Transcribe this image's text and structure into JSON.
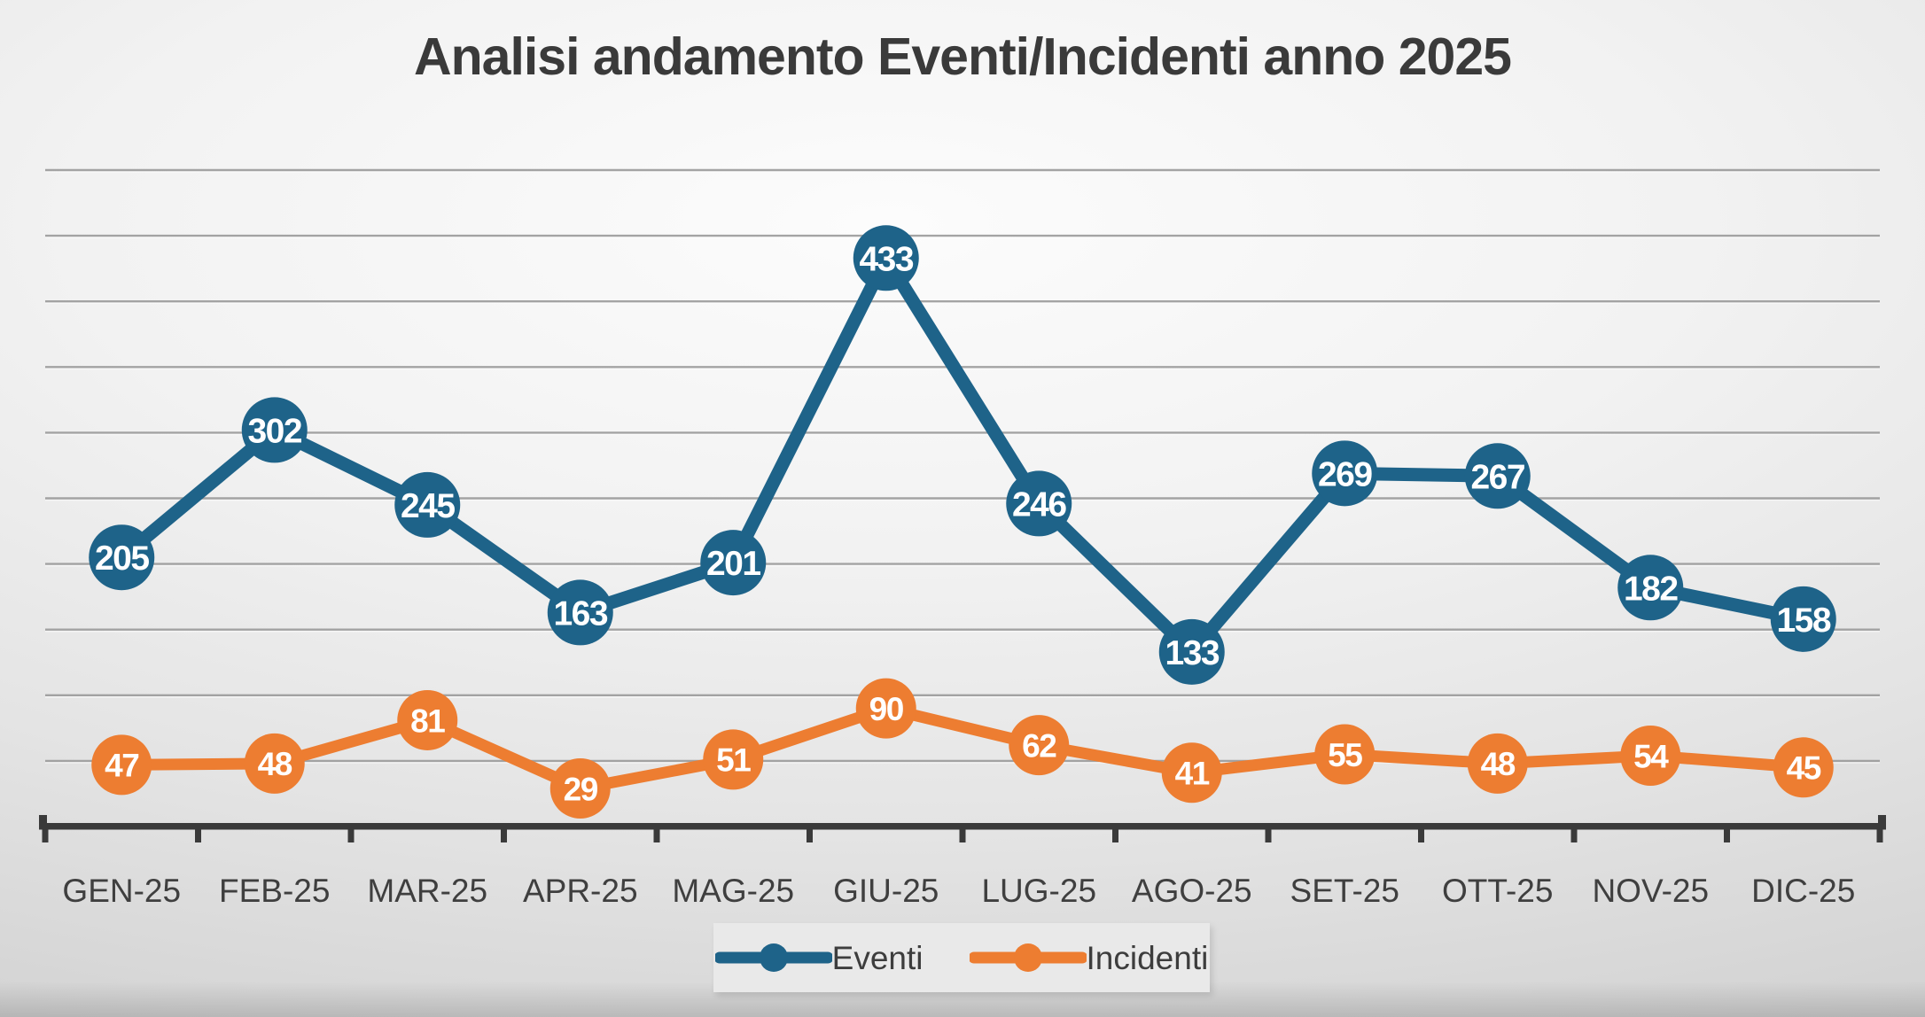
{
  "header": {
    "title": "Analisi andamento Eventi/Incidenti anno 2025"
  },
  "chart_data": {
    "type": "line",
    "title": "Analisi andamento Eventi/Incidenti anno 2025",
    "categories": [
      "GEN-25",
      "FEB-25",
      "MAR-25",
      "APR-25",
      "MAG-25",
      "GIU-25",
      "LUG-25",
      "AGO-25",
      "SET-25",
      "OTT-25",
      "NOV-25",
      "DIC-25"
    ],
    "series": [
      {
        "name": "Eventi",
        "color": "#1E6389",
        "values": [
          205,
          302,
          245,
          163,
          201,
          433,
          246,
          133,
          269,
          267,
          182,
          158
        ]
      },
      {
        "name": "Incidenti",
        "color": "#ED7D31",
        "values": [
          47,
          48,
          81,
          29,
          51,
          90,
          62,
          41,
          55,
          48,
          54,
          45
        ]
      }
    ],
    "xlabel": "",
    "ylabel": "",
    "ylim": [
      0,
      500
    ],
    "grid_step": 50,
    "grid": true,
    "legend_position": "bottom",
    "data_labels": "on-marker"
  },
  "style": {
    "axis_color": "#3A3A3A",
    "gridline_color": "#9B9B9B",
    "tick_label_color": "#3F3F3F",
    "marker_label_color": "#FFFFFF",
    "legend_bg": "#E9E9E9",
    "background_center": "#FCFCFC",
    "background_edge": "#B8B8B8"
  }
}
